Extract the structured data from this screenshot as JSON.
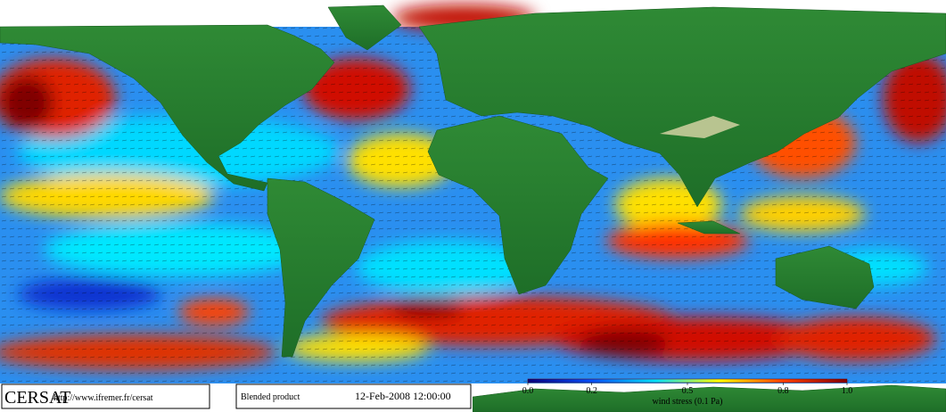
{
  "footer": {
    "logo": "CERSAT",
    "url": "http://www.ifremer.fr/cersat",
    "product": "Blended product",
    "datetime": "12-Feb-2008 12:00:00"
  },
  "colorbar": {
    "label": "wind stress (0.1 Pa)",
    "lim": [
      0,
      1
    ],
    "ticks": [
      {
        "value": 0,
        "label": "0.0"
      },
      0.2,
      0.5,
      0.8,
      {
        "value": 1,
        "label": "1.0"
      }
    ]
  }
}
